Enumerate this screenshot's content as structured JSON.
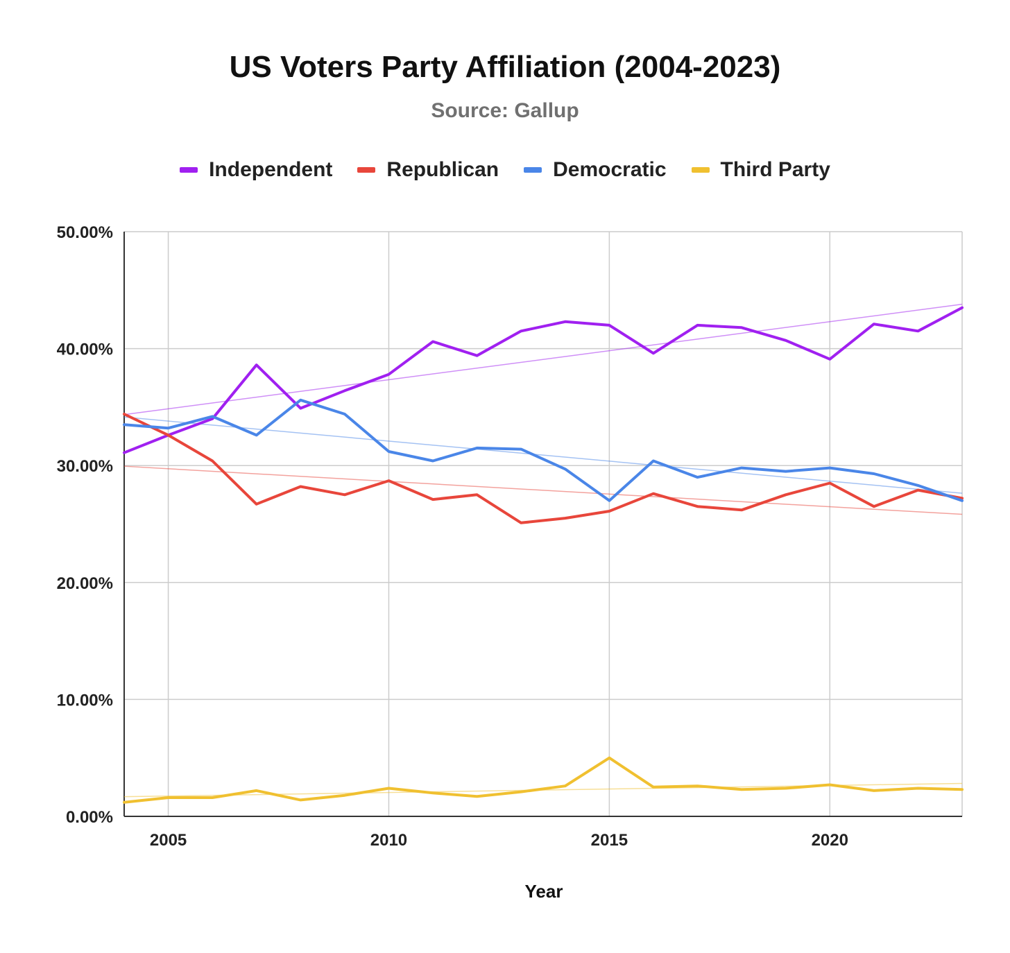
{
  "chart_data": {
    "type": "line",
    "title": "US Voters Party Affiliation (2004-2023)",
    "subtitle": "Source: Gallup",
    "xlabel": "Year",
    "ylabel": "",
    "x": [
      2004,
      2005,
      2006,
      2007,
      2008,
      2009,
      2010,
      2011,
      2012,
      2013,
      2014,
      2015,
      2016,
      2017,
      2018,
      2019,
      2020,
      2021,
      2022,
      2023
    ],
    "xlim": [
      2004,
      2023
    ],
    "ylim": [
      0,
      50
    ],
    "y_ticks": [
      0,
      10,
      20,
      30,
      40,
      50
    ],
    "y_tick_labels": [
      "0.00%",
      "10.00%",
      "20.00%",
      "30.00%",
      "40.00%",
      "50.00%"
    ],
    "x_ticks": [
      2005,
      2010,
      2015,
      2020
    ],
    "x_tick_labels": [
      "2005",
      "2010",
      "2015",
      "2020"
    ],
    "grid": true,
    "legend_position": "top",
    "trendlines": true,
    "series": [
      {
        "name": "Independent",
        "color": "#a020f0",
        "values": [
          31.1,
          32.6,
          34.0,
          38.6,
          34.9,
          36.4,
          37.8,
          40.6,
          39.4,
          41.5,
          42.3,
          42.0,
          39.6,
          42.0,
          41.8,
          40.7,
          39.1,
          42.1,
          41.5,
          43.5
        ]
      },
      {
        "name": "Republican",
        "color": "#e8463b",
        "values": [
          34.4,
          32.6,
          30.4,
          26.7,
          28.2,
          27.5,
          28.7,
          27.1,
          27.5,
          25.1,
          25.5,
          26.1,
          27.6,
          26.5,
          26.2,
          27.5,
          28.5,
          26.5,
          27.9,
          27.2
        ]
      },
      {
        "name": "Democratic",
        "color": "#4a86e8",
        "values": [
          33.5,
          33.2,
          34.2,
          32.6,
          35.6,
          34.4,
          31.2,
          30.4,
          31.5,
          31.4,
          29.7,
          27.0,
          30.4,
          29.0,
          29.8,
          29.5,
          29.8,
          29.3,
          28.3,
          27.0
        ]
      },
      {
        "name": "Third Party",
        "color": "#f0c030",
        "values": [
          1.2,
          1.6,
          1.6,
          2.2,
          1.4,
          1.8,
          2.4,
          2.0,
          1.7,
          2.1,
          2.6,
          5.0,
          2.5,
          2.6,
          2.3,
          2.4,
          2.7,
          2.2,
          2.4,
          2.3
        ]
      }
    ]
  }
}
